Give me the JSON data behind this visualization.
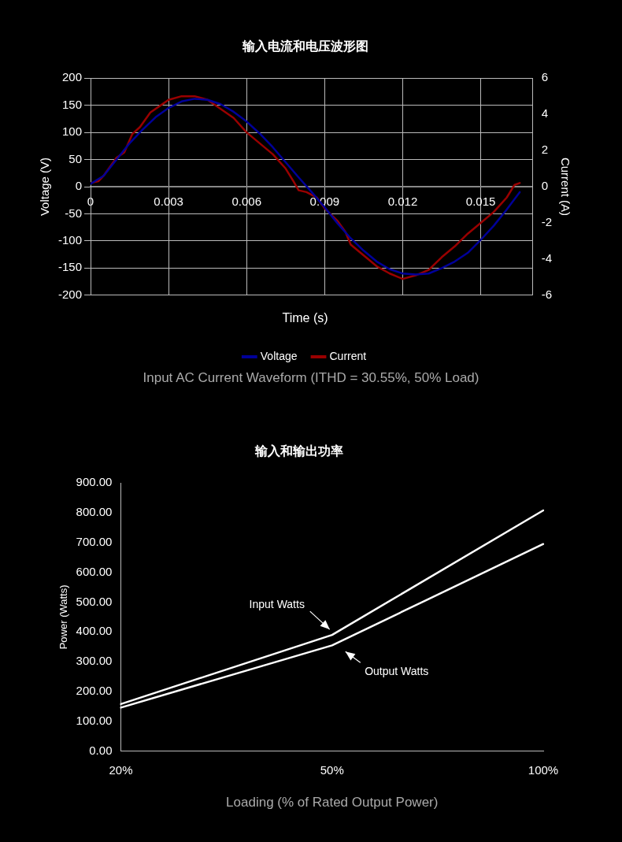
{
  "chart_data": [
    {
      "type": "line",
      "title": "输入电流和电压波形图",
      "xlabel": "Time (s)",
      "ylabel": "Voltage (V)",
      "y2label": "Current (A)",
      "xlim": [
        0,
        0.017
      ],
      "xticks": [
        0,
        0.003,
        0.006,
        0.009,
        0.012,
        0.015
      ],
      "ylim": [
        -200,
        200
      ],
      "yticks": [
        -200,
        -150,
        -100,
        -50,
        0,
        50,
        100,
        150,
        200
      ],
      "y2lim": [
        -6,
        6
      ],
      "y2ticks": [
        -6,
        -4,
        -2,
        0,
        2,
        4,
        6
      ],
      "grid": true,
      "legend": "bottom",
      "marker": "none",
      "annotations": [
        "Input AC Current Waveform (ITHD = 30.55%, 50% Load)"
      ],
      "series": [
        {
          "name": "Voltage",
          "color": "#000099",
          "x": [
            0,
            0.0005,
            0.001,
            0.0015,
            0.002,
            0.0025,
            0.003,
            0.0035,
            0.004,
            0.0045,
            0.005,
            0.0055,
            0.006,
            0.0065,
            0.007,
            0.0075,
            0.008,
            0.0085,
            0.009,
            0.0095,
            0.01,
            0.0105,
            0.011,
            0.0115,
            0.012,
            0.0125,
            0.013,
            0.0135,
            0.014,
            0.0145,
            0.015,
            0.0155,
            0.016,
            0.0165
          ],
          "values": [
            5,
            20,
            50,
            80,
            105,
            128,
            145,
            157,
            162,
            160,
            152,
            138,
            120,
            98,
            73,
            45,
            17,
            -10,
            -38,
            -68,
            -95,
            -118,
            -138,
            -152,
            -160,
            -162,
            -160,
            -150,
            -138,
            -122,
            -98,
            -72,
            -42,
            -10
          ]
        },
        {
          "name": "Current",
          "color": "#990000",
          "axis": "y2",
          "x": [
            0,
            0.0003,
            0.0005,
            0.001,
            0.0013,
            0.0016,
            0.0019,
            0.0023,
            0.0027,
            0.003,
            0.0035,
            0.004,
            0.0045,
            0.005,
            0.0055,
            0.006,
            0.0065,
            0.007,
            0.0075,
            0.0078,
            0.008,
            0.0083,
            0.0087,
            0.009,
            0.0095,
            0.0098,
            0.01,
            0.0105,
            0.011,
            0.0115,
            0.012,
            0.0125,
            0.013,
            0.0135,
            0.014,
            0.0145,
            0.015,
            0.0155,
            0.016,
            0.0163,
            0.0165
          ],
          "values": [
            0.2,
            0.3,
            0.6,
            1.6,
            1.9,
            2.9,
            3.3,
            4.1,
            4.5,
            4.8,
            5.0,
            5.0,
            4.8,
            4.3,
            3.8,
            3.0,
            2.4,
            1.8,
            1.0,
            0.3,
            -0.2,
            -0.3,
            -0.6,
            -1.2,
            -1.9,
            -2.5,
            -3.2,
            -3.8,
            -4.4,
            -4.8,
            -5.1,
            -4.9,
            -4.6,
            -3.9,
            -3.3,
            -2.6,
            -2.0,
            -1.4,
            -0.6,
            0.1,
            0.2
          ]
        }
      ]
    },
    {
      "type": "line",
      "title": "输入和输出功率",
      "xlabel": "Loading (% of Rated Output Power)",
      "ylabel": "Power (Watts)",
      "categories": [
        "20%",
        "50%",
        "100%"
      ],
      "ylim": [
        0,
        900
      ],
      "yticks": [
        {
          "value": 0,
          "label": "0.00"
        },
        {
          "value": 100,
          "label": "100.00"
        },
        {
          "value": 200,
          "label": "200.00"
        },
        {
          "value": 300,
          "label": "300.00"
        },
        {
          "value": 400,
          "label": "400.00"
        },
        {
          "value": 500,
          "label": "500.00"
        },
        {
          "value": 600,
          "label": "600.00"
        },
        {
          "value": 700,
          "label": "700.00"
        },
        {
          "value": 800,
          "label": "800.00"
        },
        {
          "value": 900,
          "label": "900.00"
        }
      ],
      "grid": false,
      "legend": false,
      "marker": "none",
      "series": [
        {
          "name": "Input Watts",
          "color": "#ffffff",
          "values": [
            158,
            390,
            808
          ]
        },
        {
          "name": "Output Watts",
          "color": "#ffffff",
          "values": [
            146,
            355,
            695
          ]
        }
      ]
    }
  ]
}
